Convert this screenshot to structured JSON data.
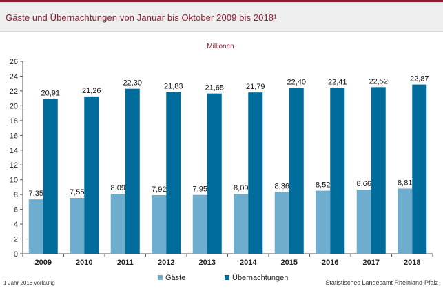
{
  "header": {
    "title": "Gäste und Übernachtungen von Januar bis Oktober 2009 bis 2018¹"
  },
  "footnote": "1 Jahr 2018 vorläufig",
  "source": "Statistisches Landesamt Rheinland-Pfalz",
  "chart_data": {
    "type": "bar",
    "unit_label": "Millionen",
    "categories": [
      "2009",
      "2010",
      "2011",
      "2012",
      "2013",
      "2014",
      "2015",
      "2016",
      "2017",
      "2018"
    ],
    "series": [
      {
        "name": "Gäste",
        "color": "#6fadcf",
        "values": [
          7.35,
          7.55,
          8.09,
          7.92,
          7.95,
          8.09,
          8.36,
          8.52,
          8.66,
          8.81
        ],
        "labels": [
          "7,35",
          "7,55",
          "8,09",
          "7,92",
          "7,95",
          "8,09",
          "8,36",
          "8,52",
          "8,66",
          "8,81"
        ]
      },
      {
        "name": "Übernachtungen",
        "color": "#006c9c",
        "values": [
          20.91,
          21.26,
          22.3,
          21.83,
          21.65,
          21.79,
          22.4,
          22.41,
          22.52,
          22.87
        ],
        "labels": [
          "20,91",
          "21,26",
          "22,30",
          "21,83",
          "21,65",
          "21,79",
          "22,40",
          "22,41",
          "22,52",
          "22,87"
        ]
      }
    ],
    "ylim": [
      0,
      26
    ],
    "yticks": [
      0,
      2,
      4,
      6,
      8,
      10,
      12,
      14,
      16,
      18,
      20,
      22,
      24,
      26
    ],
    "grid": false,
    "legend": "bottom-center"
  }
}
